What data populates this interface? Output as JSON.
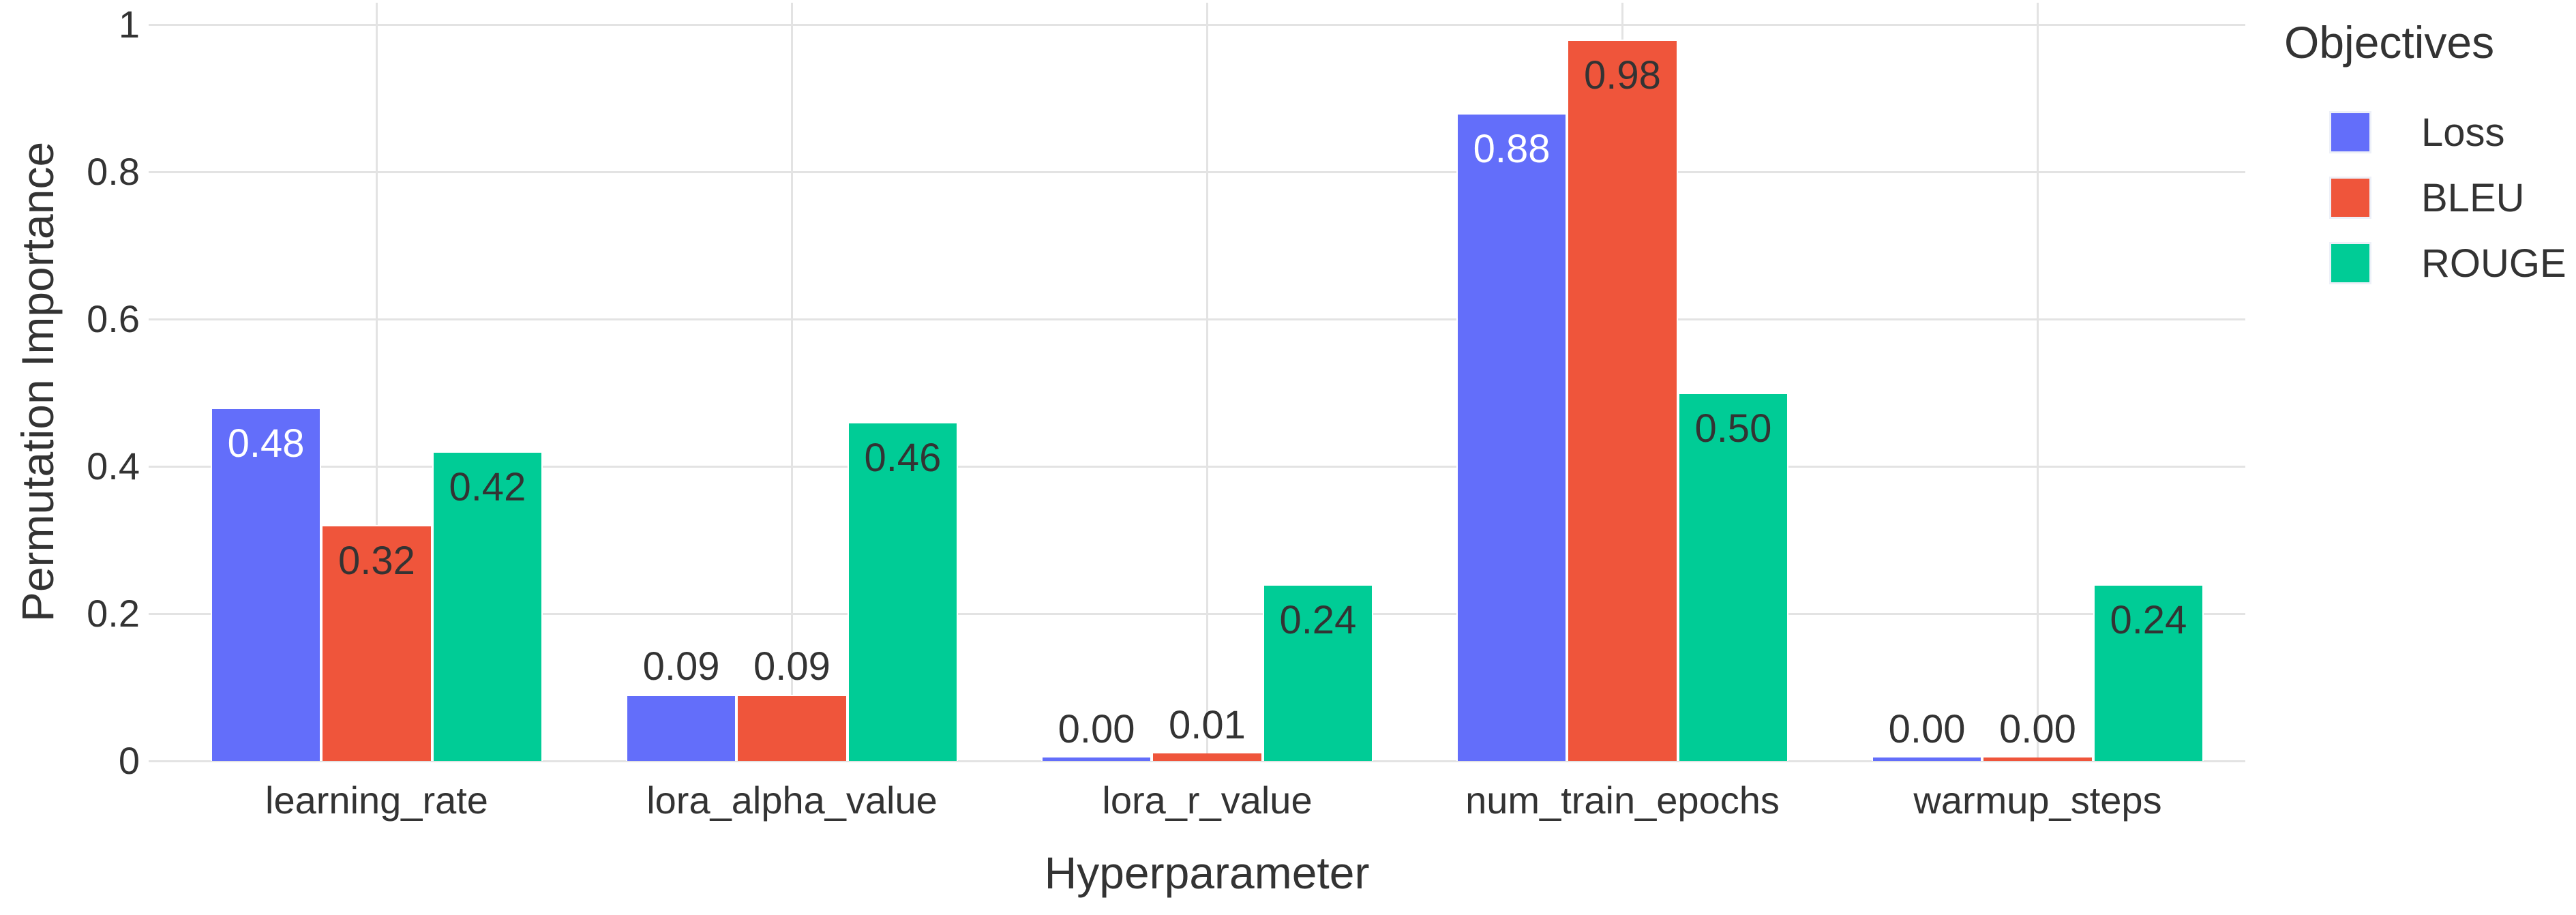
{
  "chart_data": {
    "type": "bar",
    "mode": "grouped",
    "xlabel": "Hyperparameter",
    "ylabel": "Permutation Importance",
    "categories": [
      "learning_rate",
      "lora_alpha_value",
      "lora_r_value",
      "num_train_epochs",
      "warmup_steps"
    ],
    "series": [
      {
        "name": "Loss",
        "color": "#636EFA",
        "inside_label_color": "#ffffff",
        "values": [
          0.48,
          0.09,
          0.0,
          0.88,
          0.0
        ],
        "labels": [
          "0.48",
          "0.09",
          "0.00",
          "0.88",
          "0.00"
        ]
      },
      {
        "name": "BLEU",
        "color": "#EF553B",
        "inside_label_color": "#333333",
        "values": [
          0.32,
          0.09,
          0.01,
          0.98,
          0.0
        ],
        "labels": [
          "0.32",
          "0.09",
          "0.01",
          "0.98",
          "0.00"
        ]
      },
      {
        "name": "ROUGE",
        "color": "#00CC96",
        "inside_label_color": "#333333",
        "values": [
          0.42,
          0.46,
          0.24,
          0.5,
          0.24
        ],
        "labels": [
          "0.42",
          "0.46",
          "0.24",
          "0.50",
          "0.24"
        ]
      }
    ],
    "ylim": [
      0,
      1
    ],
    "yticks": [
      {
        "v": 0.0,
        "label": "0"
      },
      {
        "v": 0.2,
        "label": "0.2"
      },
      {
        "v": 0.4,
        "label": "0.4"
      },
      {
        "v": 0.6,
        "label": "0.6"
      },
      {
        "v": 0.8,
        "label": "0.8"
      },
      {
        "v": 1.0,
        "label": "1"
      }
    ],
    "legend_title": "Objectives",
    "legend_position": "top-right",
    "grid": true
  },
  "colors": {
    "background": "#ffffff",
    "grid": "#e3e3e3",
    "text": "#333333",
    "outside_label": "#333333"
  }
}
